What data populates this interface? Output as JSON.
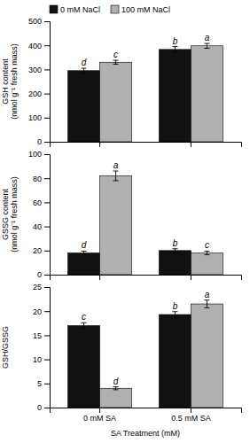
{
  "chart_data": [
    {
      "type": "bar",
      "categories": [
        null,
        null
      ],
      "series": [
        {
          "name": "0 mM NaCl",
          "color": "#111111",
          "values": [
            295,
            383
          ],
          "errors": [
            10,
            12
          ],
          "annotations": [
            "d",
            "b"
          ]
        },
        {
          "name": "100 mM NaCl",
          "color": "#b0b0b0",
          "values": [
            330,
            398
          ],
          "errors": [
            8,
            10
          ],
          "annotations": [
            "c",
            "a"
          ]
        }
      ],
      "ylabel": "GSH content (nmol g⁻¹ fresh mass)",
      "ylim": [
        0,
        500
      ],
      "yticks": [
        0,
        100,
        200,
        300,
        400,
        500
      ],
      "grid": false,
      "legend": "upper left"
    },
    {
      "type": "bar",
      "categories": [
        null,
        null
      ],
      "series": [
        {
          "color": "#111111",
          "values": [
            18,
            20
          ],
          "errors": [
            1.5,
            1.5
          ],
          "annotations": [
            "d",
            "b"
          ]
        },
        {
          "color": "#b0b0b0",
          "values": [
            82,
            18
          ],
          "errors": [
            4,
            1.5
          ],
          "annotations": [
            "a",
            "c"
          ]
        }
      ],
      "ylabel": "GSSG content (nmol g⁻¹ fresh mass)",
      "ylim": [
        0,
        100
      ],
      "yticks": [
        0,
        20,
        40,
        60,
        80,
        100
      ],
      "grid": false
    },
    {
      "type": "bar",
      "categories": [
        "0 mM SA",
        "0.5 mM SA"
      ],
      "series": [
        {
          "color": "#111111",
          "values": [
            17,
            19.3
          ],
          "errors": [
            0.6,
            0.6
          ],
          "annotations": [
            "c",
            "b"
          ]
        },
        {
          "color": "#b0b0b0",
          "values": [
            4,
            21.5
          ],
          "errors": [
            0.3,
            0.8
          ],
          "annotations": [
            "d",
            "a"
          ]
        }
      ],
      "xlabel": "SA Treatment (mM)",
      "ylabel": "GSH/GSSG",
      "ylim": [
        0,
        25
      ],
      "yticks": [
        0,
        5,
        10,
        15,
        20,
        25
      ],
      "grid": false
    }
  ]
}
